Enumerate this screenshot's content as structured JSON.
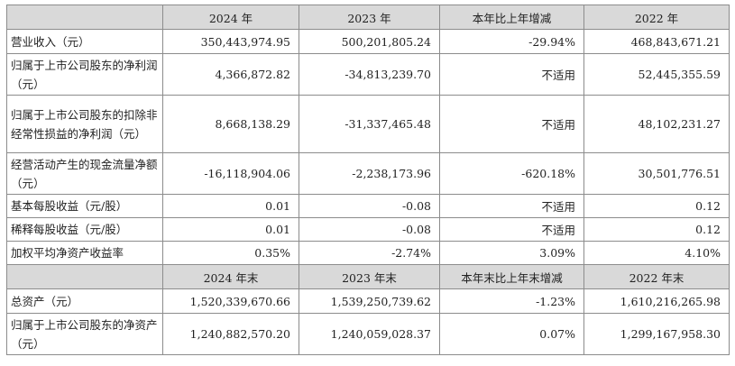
{
  "header1": [
    "",
    "2024 年",
    "2023 年",
    "本年比上年增减",
    "2022 年"
  ],
  "rows1": [
    {
      "label": "营业收入（元）",
      "v": [
        "350,443,974.95",
        "500,201,805.24",
        "-29.94%",
        "468,843,671.21"
      ]
    },
    {
      "label": "归属于上市公司股东的净利润（元）",
      "v": [
        "4,366,872.82",
        "-34,813,239.70",
        "不适用",
        "52,445,355.59"
      ]
    },
    {
      "label": "归属于上市公司股东的扣除非经常性损益的净利润（元）",
      "v": [
        "8,668,138.29",
        "-31,337,465.48",
        "不适用",
        "48,102,231.27"
      ]
    },
    {
      "label": "经营活动产生的现金流量净额（元）",
      "v": [
        "-16,118,904.06",
        "-2,238,173.96",
        "-620.18%",
        "30,501,776.51"
      ]
    },
    {
      "label": "基本每股收益（元/股）",
      "v": [
        "0.01",
        "-0.08",
        "不适用",
        "0.12"
      ]
    },
    {
      "label": "稀释每股收益（元/股）",
      "v": [
        "0.01",
        "-0.08",
        "不适用",
        "0.12"
      ]
    },
    {
      "label": "加权平均净资产收益率",
      "v": [
        "0.35%",
        "-2.74%",
        "3.09%",
        "4.10%"
      ]
    }
  ],
  "header2": [
    "",
    "2024 年末",
    "2023 年末",
    "本年末比上年末增减",
    "2022 年末"
  ],
  "rows2": [
    {
      "label": "总资产（元）",
      "v": [
        "1,520,339,670.66",
        "1,539,250,739.62",
        "-1.23%",
        "1,610,216,265.98"
      ]
    },
    {
      "label": "归属于上市公司股东的净资产（元）",
      "v": [
        "1,240,882,570.20",
        "1,240,059,028.37",
        "0.07%",
        "1,299,167,958.30"
      ]
    }
  ]
}
